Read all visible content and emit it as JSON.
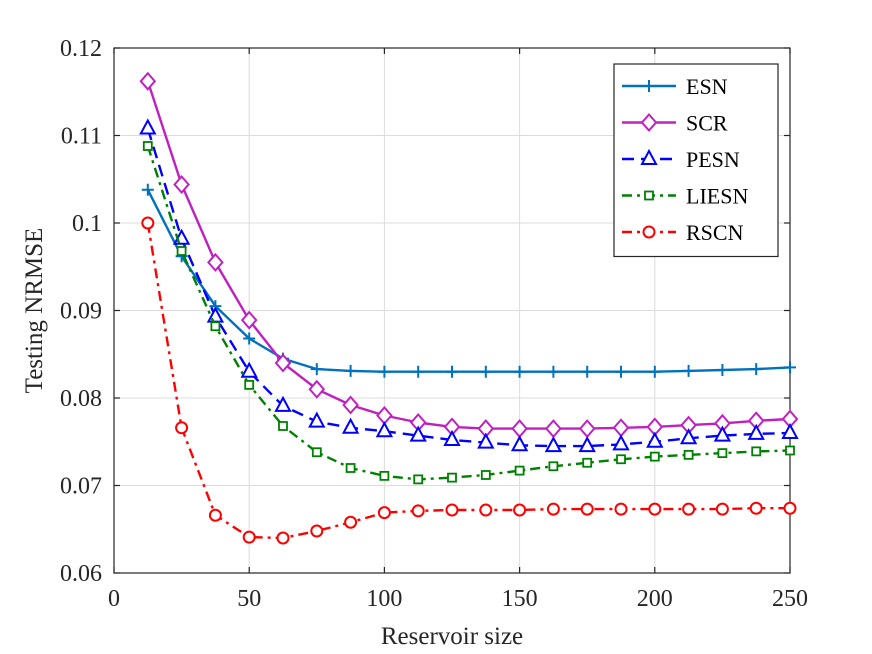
{
  "chart_data": {
    "type": "line",
    "title": "",
    "xlabel": "Reservoir size",
    "ylabel": "Testing NRMSE",
    "xlim": [
      0,
      250
    ],
    "ylim": [
      0.06,
      0.12
    ],
    "xticks": [
      0,
      50,
      100,
      150,
      200,
      250
    ],
    "xtick_labels": [
      "0",
      "50",
      "100",
      "150",
      "200",
      "250"
    ],
    "yticks": [
      0.06,
      0.07,
      0.08,
      0.09,
      0.1,
      0.11,
      0.12
    ],
    "ytick_labels": [
      "0.06",
      "0.07",
      "0.08",
      "0.09",
      "0.1",
      "0.11",
      "0.12"
    ],
    "grid": true,
    "legend_position": "top-right",
    "x": [
      12.5,
      25,
      37.5,
      50,
      62.5,
      75,
      87.5,
      100,
      112.5,
      125,
      137.5,
      150,
      162.5,
      175,
      187.5,
      200,
      212.5,
      225,
      237.5,
      250
    ],
    "series": [
      {
        "name": "ESN",
        "color": "#0072bd",
        "line_style": "solid",
        "marker": "plus",
        "values": [
          0.1038,
          0.0962,
          0.0905,
          0.0868,
          0.0845,
          0.0833,
          0.0831,
          0.083,
          0.083,
          0.083,
          0.083,
          0.083,
          0.083,
          0.083,
          0.083,
          0.083,
          0.0831,
          0.0832,
          0.0833,
          0.0835
        ]
      },
      {
        "name": "SCR",
        "color": "#c020c0",
        "line_style": "solid",
        "marker": "diamond",
        "values": [
          0.1162,
          0.1044,
          0.0955,
          0.0889,
          0.084,
          0.081,
          0.0792,
          0.078,
          0.0772,
          0.0767,
          0.0765,
          0.0765,
          0.0765,
          0.0765,
          0.0766,
          0.0767,
          0.0769,
          0.0771,
          0.0774,
          0.0776
        ]
      },
      {
        "name": "PESN",
        "color": "#0000ff",
        "line_style": "dashed",
        "marker": "triangle",
        "values": [
          0.1108,
          0.0982,
          0.0893,
          0.083,
          0.0791,
          0.0773,
          0.0766,
          0.0762,
          0.0757,
          0.0752,
          0.0749,
          0.0746,
          0.0745,
          0.0745,
          0.0747,
          0.075,
          0.0754,
          0.0757,
          0.0759,
          0.076
        ]
      },
      {
        "name": "LIESN",
        "color": "#008000",
        "line_style": "dashdot",
        "marker": "square",
        "values": [
          0.1088,
          0.0968,
          0.0882,
          0.0815,
          0.0768,
          0.0738,
          0.072,
          0.0711,
          0.0707,
          0.0709,
          0.0712,
          0.0717,
          0.0722,
          0.0726,
          0.073,
          0.0733,
          0.0735,
          0.0737,
          0.0739,
          0.074
        ]
      },
      {
        "name": "RSCN",
        "color": "#ff0000",
        "line_style": "dashdot",
        "marker": "circle",
        "values": [
          0.1,
          0.0766,
          0.0666,
          0.0641,
          0.064,
          0.0648,
          0.0658,
          0.0669,
          0.0671,
          0.0672,
          0.0672,
          0.0672,
          0.0673,
          0.0673,
          0.0673,
          0.0673,
          0.0673,
          0.0673,
          0.0674,
          0.0674
        ]
      }
    ]
  }
}
